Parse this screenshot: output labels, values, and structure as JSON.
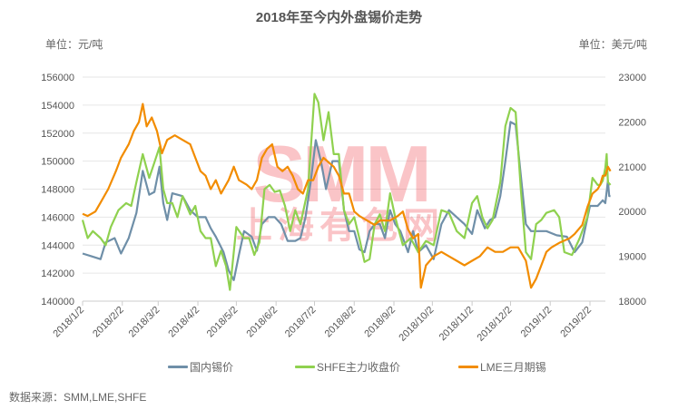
{
  "chart_data": {
    "type": "line",
    "title": "2018年至今内外盘锡价走势",
    "ylabel_left": "单位：元/吨",
    "ylabel_right": "单位：美元/吨",
    "ylim_left": [
      140000,
      156000
    ],
    "ylim_right": [
      18000,
      23000
    ],
    "yticks_left": [
      "140000",
      "142000",
      "144000",
      "146000",
      "148000",
      "150000",
      "152000",
      "154000",
      "156000"
    ],
    "yticks_right": [
      "18000",
      "19000",
      "20000",
      "21000",
      "22000",
      "23000"
    ],
    "xticks": [
      "2018/1/2",
      "2018/2/2",
      "2018/3/2",
      "2018/4/2",
      "2018/5/2",
      "2018/6/2",
      "2018/7/2",
      "2018/8/2",
      "2018/9/2",
      "2018/10/2",
      "2018/11/2",
      "2018/12/2",
      "2019/1/2",
      "2019/2/2"
    ],
    "xtick_days": [
      0,
      31,
      59,
      90,
      120,
      151,
      181,
      212,
      243,
      273,
      304,
      334,
      365,
      396
    ],
    "x_day_range": [
      0,
      412
    ],
    "grid": true,
    "legend_position": "bottom",
    "series": [
      {
        "name": "国内锡价",
        "axis": "left",
        "color": "#6f8fa8",
        "points": [
          [
            0,
            143400
          ],
          [
            7,
            143200
          ],
          [
            14,
            143000
          ],
          [
            18,
            144200
          ],
          [
            25,
            144500
          ],
          [
            30,
            143400
          ],
          [
            36,
            144500
          ],
          [
            42,
            146300
          ],
          [
            47,
            149300
          ],
          [
            52,
            147600
          ],
          [
            56,
            147800
          ],
          [
            60,
            149600
          ],
          [
            63,
            147000
          ],
          [
            66,
            145800
          ],
          [
            70,
            147700
          ],
          [
            78,
            147500
          ],
          [
            84,
            146500
          ],
          [
            90,
            146000
          ],
          [
            96,
            146000
          ],
          [
            100,
            145200
          ],
          [
            104,
            144600
          ],
          [
            110,
            143500
          ],
          [
            114,
            142200
          ],
          [
            118,
            141500
          ],
          [
            122,
            143300
          ],
          [
            126,
            145000
          ],
          [
            132,
            144600
          ],
          [
            136,
            143600
          ],
          [
            140,
            145500
          ],
          [
            145,
            146000
          ],
          [
            150,
            146000
          ],
          [
            155,
            145500
          ],
          [
            160,
            144300
          ],
          [
            166,
            144300
          ],
          [
            170,
            144500
          ],
          [
            174,
            146000
          ],
          [
            178,
            148500
          ],
          [
            182,
            151500
          ],
          [
            186,
            150000
          ],
          [
            190,
            148000
          ],
          [
            195,
            150000
          ],
          [
            200,
            150000
          ],
          [
            204,
            146500
          ],
          [
            208,
            145000
          ],
          [
            212,
            145000
          ],
          [
            216,
            143700
          ],
          [
            220,
            143500
          ],
          [
            224,
            145000
          ],
          [
            228,
            145500
          ],
          [
            232,
            145500
          ],
          [
            236,
            144500
          ],
          [
            240,
            146500
          ],
          [
            244,
            145500
          ],
          [
            248,
            145000
          ],
          [
            254,
            143500
          ],
          [
            258,
            145000
          ],
          [
            262,
            143500
          ],
          [
            268,
            144000
          ],
          [
            274,
            143000
          ],
          [
            280,
            145500
          ],
          [
            286,
            146500
          ],
          [
            292,
            146000
          ],
          [
            298,
            145500
          ],
          [
            304,
            144800
          ],
          [
            308,
            146500
          ],
          [
            314,
            145200
          ],
          [
            318,
            145800
          ],
          [
            322,
            146000
          ],
          [
            326,
            147500
          ],
          [
            330,
            150000
          ],
          [
            334,
            152800
          ],
          [
            338,
            152600
          ],
          [
            342,
            149000
          ],
          [
            346,
            145500
          ],
          [
            350,
            145000
          ],
          [
            356,
            145000
          ],
          [
            362,
            145000
          ],
          [
            370,
            144700
          ],
          [
            378,
            144600
          ],
          [
            384,
            143500
          ],
          [
            390,
            144200
          ],
          [
            396,
            146800
          ],
          [
            402,
            146800
          ],
          [
            406,
            147200
          ],
          [
            408,
            147000
          ],
          [
            410,
            148600
          ],
          [
            411,
            147500
          ],
          [
            412,
            147500
          ]
        ]
      },
      {
        "name": "SHFE主力收盘价",
        "axis": "left",
        "color": "#8fd14f",
        "points": [
          [
            0,
            145800
          ],
          [
            4,
            144500
          ],
          [
            8,
            145000
          ],
          [
            14,
            144500
          ],
          [
            18,
            144000
          ],
          [
            22,
            145300
          ],
          [
            28,
            146500
          ],
          [
            34,
            147000
          ],
          [
            38,
            146800
          ],
          [
            42,
            148500
          ],
          [
            47,
            150500
          ],
          [
            52,
            148800
          ],
          [
            56,
            149900
          ],
          [
            60,
            151000
          ],
          [
            63,
            148000
          ],
          [
            66,
            147000
          ],
          [
            70,
            147000
          ],
          [
            74,
            146000
          ],
          [
            78,
            147500
          ],
          [
            84,
            146200
          ],
          [
            88,
            146800
          ],
          [
            92,
            145000
          ],
          [
            96,
            144500
          ],
          [
            100,
            144500
          ],
          [
            104,
            142500
          ],
          [
            108,
            143600
          ],
          [
            112,
            142500
          ],
          [
            115,
            140800
          ],
          [
            120,
            145300
          ],
          [
            126,
            144500
          ],
          [
            130,
            144500
          ],
          [
            134,
            143300
          ],
          [
            138,
            144200
          ],
          [
            142,
            148000
          ],
          [
            146,
            148300
          ],
          [
            150,
            147800
          ],
          [
            154,
            147900
          ],
          [
            158,
            146800
          ],
          [
            162,
            145000
          ],
          [
            166,
            146500
          ],
          [
            170,
            145500
          ],
          [
            176,
            148000
          ],
          [
            181,
            154800
          ],
          [
            184,
            154200
          ],
          [
            188,
            151500
          ],
          [
            192,
            153500
          ],
          [
            196,
            150500
          ],
          [
            200,
            150500
          ],
          [
            204,
            146500
          ],
          [
            208,
            145500
          ],
          [
            212,
            146000
          ],
          [
            216,
            144500
          ],
          [
            220,
            142800
          ],
          [
            224,
            143000
          ],
          [
            228,
            145500
          ],
          [
            232,
            146200
          ],
          [
            236,
            145000
          ],
          [
            240,
            147700
          ],
          [
            244,
            146000
          ],
          [
            250,
            144000
          ],
          [
            256,
            144500
          ],
          [
            262,
            143500
          ],
          [
            268,
            144300
          ],
          [
            274,
            144000
          ],
          [
            280,
            146500
          ],
          [
            286,
            146300
          ],
          [
            292,
            145000
          ],
          [
            298,
            144500
          ],
          [
            304,
            147000
          ],
          [
            308,
            147500
          ],
          [
            312,
            146000
          ],
          [
            316,
            145200
          ],
          [
            320,
            145800
          ],
          [
            326,
            148500
          ],
          [
            330,
            152500
          ],
          [
            334,
            153800
          ],
          [
            338,
            153500
          ],
          [
            342,
            148000
          ],
          [
            346,
            143500
          ],
          [
            350,
            143000
          ],
          [
            354,
            145500
          ],
          [
            358,
            145800
          ],
          [
            362,
            146300
          ],
          [
            368,
            146500
          ],
          [
            372,
            146000
          ],
          [
            376,
            143500
          ],
          [
            382,
            143300
          ],
          [
            388,
            144500
          ],
          [
            394,
            146000
          ],
          [
            398,
            148800
          ],
          [
            402,
            148300
          ],
          [
            404,
            148300
          ],
          [
            406,
            148600
          ],
          [
            408,
            149500
          ],
          [
            409,
            150500
          ],
          [
            410,
            148500
          ],
          [
            412,
            148300
          ]
        ]
      },
      {
        "name": "LME三月期锡",
        "axis": "right",
        "color": "#f28c00",
        "points": [
          [
            0,
            19950
          ],
          [
            4,
            19900
          ],
          [
            10,
            20000
          ],
          [
            14,
            20200
          ],
          [
            20,
            20500
          ],
          [
            26,
            20900
          ],
          [
            30,
            21200
          ],
          [
            36,
            21500
          ],
          [
            40,
            21800
          ],
          [
            44,
            22000
          ],
          [
            47,
            22400
          ],
          [
            50,
            21900
          ],
          [
            54,
            22100
          ],
          [
            58,
            21800
          ],
          [
            62,
            21300
          ],
          [
            66,
            21600
          ],
          [
            72,
            21700
          ],
          [
            78,
            21600
          ],
          [
            84,
            21500
          ],
          [
            88,
            21200
          ],
          [
            92,
            20900
          ],
          [
            96,
            20800
          ],
          [
            100,
            20500
          ],
          [
            104,
            20700
          ],
          [
            108,
            20400
          ],
          [
            114,
            20700
          ],
          [
            118,
            21000
          ],
          [
            122,
            20700
          ],
          [
            128,
            20600
          ],
          [
            132,
            20500
          ],
          [
            136,
            20700
          ],
          [
            140,
            21200
          ],
          [
            144,
            21400
          ],
          [
            148,
            21500
          ],
          [
            152,
            21000
          ],
          [
            156,
            20900
          ],
          [
            160,
            21000
          ],
          [
            164,
            20800
          ],
          [
            168,
            20500
          ],
          [
            172,
            20400
          ],
          [
            176,
            20700
          ],
          [
            180,
            20700
          ],
          [
            184,
            21000
          ],
          [
            188,
            21200
          ],
          [
            192,
            21100
          ],
          [
            196,
            21000
          ],
          [
            200,
            20800
          ],
          [
            204,
            20400
          ],
          [
            208,
            20400
          ],
          [
            212,
            20000
          ],
          [
            216,
            19900
          ],
          [
            222,
            19800
          ],
          [
            228,
            19700
          ],
          [
            232,
            19800
          ],
          [
            236,
            19800
          ],
          [
            240,
            19800
          ],
          [
            246,
            19900
          ],
          [
            250,
            20000
          ],
          [
            254,
            19600
          ],
          [
            258,
            19400
          ],
          [
            262,
            19500
          ],
          [
            264,
            18300
          ],
          [
            268,
            18800
          ],
          [
            274,
            19000
          ],
          [
            280,
            19100
          ],
          [
            286,
            19000
          ],
          [
            292,
            18900
          ],
          [
            298,
            18800
          ],
          [
            304,
            18900
          ],
          [
            310,
            19000
          ],
          [
            316,
            19200
          ],
          [
            322,
            19100
          ],
          [
            328,
            19100
          ],
          [
            334,
            19200
          ],
          [
            340,
            19200
          ],
          [
            346,
            18900
          ],
          [
            350,
            18300
          ],
          [
            354,
            18500
          ],
          [
            358,
            18800
          ],
          [
            362,
            19100
          ],
          [
            366,
            19200
          ],
          [
            372,
            19300
          ],
          [
            380,
            19400
          ],
          [
            384,
            19500
          ],
          [
            390,
            19700
          ],
          [
            394,
            20100
          ],
          [
            398,
            20400
          ],
          [
            402,
            20500
          ],
          [
            404,
            20600
          ],
          [
            406,
            20800
          ],
          [
            408,
            20800
          ],
          [
            409,
            20900
          ],
          [
            410,
            21000
          ],
          [
            412,
            20900
          ]
        ]
      }
    ]
  },
  "watermark": {
    "brand": "SMM",
    "cn": "上海有色网"
  },
  "source": "数据来源：SMM,LME,SHFE"
}
